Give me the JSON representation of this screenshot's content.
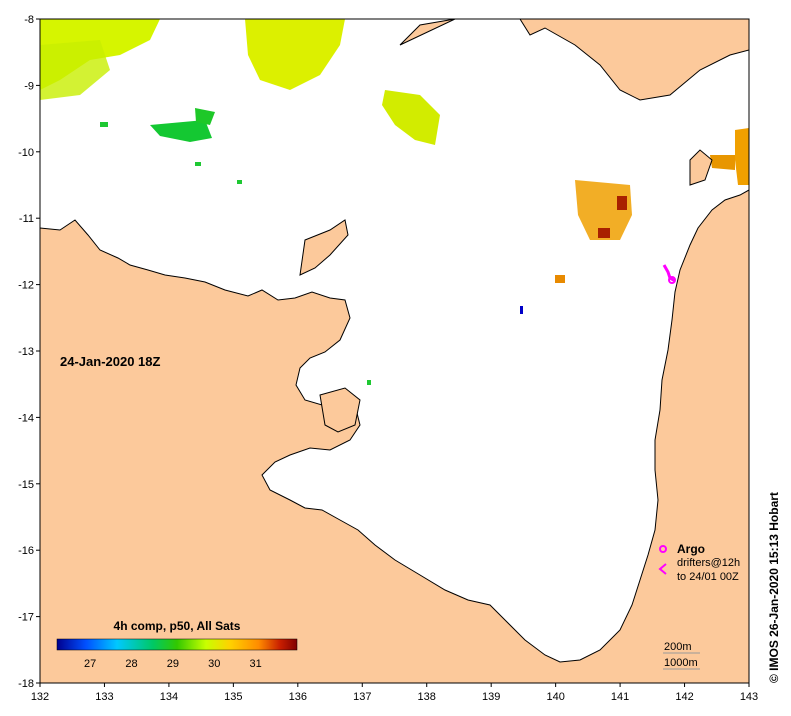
{
  "map": {
    "date_label": "24-Jan-2020 18Z",
    "credit": "© IMOS 26-Jan-2020 15:13 Hobart",
    "lat_ticks": [
      "-8",
      "-9",
      "-10",
      "-11",
      "-12",
      "-13",
      "-14",
      "-15",
      "-16",
      "-17",
      "-18"
    ],
    "lon_ticks": [
      "132",
      "133",
      "134",
      "135",
      "136",
      "137",
      "138",
      "139",
      "140",
      "141",
      "142",
      "143"
    ],
    "colorbar": {
      "title": "4h comp, p50, All Sats",
      "ticks": [
        "27",
        "28",
        "29",
        "30",
        "31"
      ]
    },
    "legend": {
      "argo": "Argo",
      "drifters_line1": "drifters@12h",
      "drifters_line2": "to 24/01 00Z",
      "contour_200": "200m",
      "contour_1000": "1000m"
    },
    "colors": {
      "land": "#fcc99b",
      "ocean": "#ffffff",
      "argo": "#ff00ff",
      "cb_stops": [
        "#00008f",
        "#0050ff",
        "#00c8ff",
        "#00c864",
        "#32c800",
        "#c8ff00",
        "#ffd200",
        "#ff8c00",
        "#c81e00",
        "#800000"
      ]
    }
  }
}
